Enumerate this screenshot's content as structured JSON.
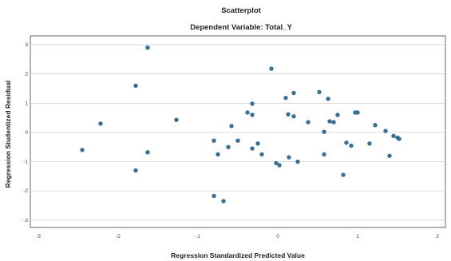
{
  "chart_data": {
    "type": "scatter",
    "title": "Scatterplot",
    "subtitle": "Dependent Variable: Total_Y",
    "xlabel": "Regression Standardized Predicted Value",
    "ylabel": "Regression Studentized Residual",
    "xlim": [
      -3.1,
      2.1
    ],
    "ylim": [
      -3.25,
      3.3
    ],
    "xticks": [
      -3,
      -2,
      -1,
      0,
      1,
      2
    ],
    "yticks": [
      3,
      2,
      1,
      0,
      -1,
      -2,
      -3
    ],
    "grid": true,
    "point_color": "#3a6f94",
    "points": [
      {
        "x": -2.45,
        "y": -0.6
      },
      {
        "x": -2.22,
        "y": 0.3
      },
      {
        "x": -1.78,
        "y": 1.6
      },
      {
        "x": -1.78,
        "y": -1.3
      },
      {
        "x": -1.63,
        "y": 2.9
      },
      {
        "x": -1.63,
        "y": -0.68
      },
      {
        "x": -1.27,
        "y": 0.43
      },
      {
        "x": -0.8,
        "y": -0.28
      },
      {
        "x": -0.75,
        "y": -0.75
      },
      {
        "x": -0.8,
        "y": -2.17
      },
      {
        "x": -0.68,
        "y": -2.35
      },
      {
        "x": -0.62,
        "y": -0.5
      },
      {
        "x": -0.58,
        "y": 0.22
      },
      {
        "x": -0.5,
        "y": -0.28
      },
      {
        "x": -0.38,
        "y": 0.68
      },
      {
        "x": -0.32,
        "y": 0.6
      },
      {
        "x": -0.32,
        "y": 0.98
      },
      {
        "x": -0.32,
        "y": -0.55
      },
      {
        "x": -0.25,
        "y": -0.38
      },
      {
        "x": -0.2,
        "y": -0.75
      },
      {
        "x": -0.08,
        "y": 2.18
      },
      {
        "x": -0.02,
        "y": -1.05
      },
      {
        "x": 0.02,
        "y": -1.12
      },
      {
        "x": 0.1,
        "y": 1.18
      },
      {
        "x": 0.13,
        "y": 0.62
      },
      {
        "x": 0.14,
        "y": -0.85
      },
      {
        "x": 0.2,
        "y": 1.35
      },
      {
        "x": 0.2,
        "y": 0.55
      },
      {
        "x": 0.25,
        "y": -1.0
      },
      {
        "x": 0.38,
        "y": 0.35
      },
      {
        "x": 0.52,
        "y": 1.38
      },
      {
        "x": 0.58,
        "y": 0.02
      },
      {
        "x": 0.58,
        "y": -0.75
      },
      {
        "x": 0.63,
        "y": 1.15
      },
      {
        "x": 0.65,
        "y": 0.38
      },
      {
        "x": 0.7,
        "y": 0.35
      },
      {
        "x": 0.75,
        "y": 0.6
      },
      {
        "x": 0.82,
        "y": -1.45
      },
      {
        "x": 0.86,
        "y": -0.35
      },
      {
        "x": 0.92,
        "y": -0.45
      },
      {
        "x": 0.97,
        "y": 0.68
      },
      {
        "x": 1.0,
        "y": 0.68
      },
      {
        "x": 1.15,
        "y": -0.38
      },
      {
        "x": 1.22,
        "y": 0.25
      },
      {
        "x": 1.35,
        "y": 0.05
      },
      {
        "x": 1.4,
        "y": -0.8
      },
      {
        "x": 1.45,
        "y": -0.12
      },
      {
        "x": 1.5,
        "y": -0.18
      },
      {
        "x": 1.52,
        "y": -0.22
      }
    ]
  }
}
